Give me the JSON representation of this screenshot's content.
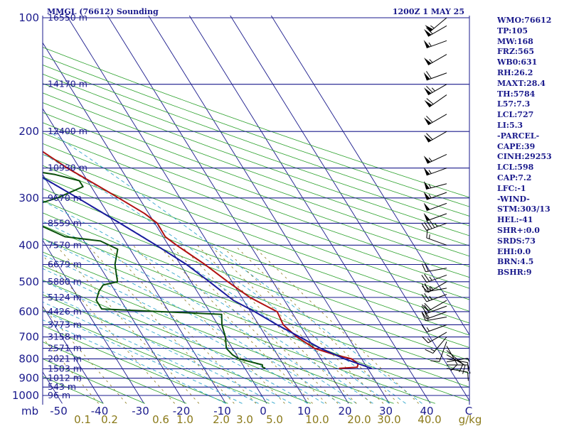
{
  "header": {
    "station": "MMGL (76612) Sounding",
    "time": "1200Z  1 MAY 25"
  },
  "indices": [
    "WMO:76612",
    "TP:105",
    "MW:168",
    "FRZ:565",
    "WB0:631",
    "RH:26.2",
    "MAXT:28.4",
    "TH:5784",
    "L57:7.3",
    "LCL:727",
    "LI:5.3",
    "-PARCEL-",
    "CAPE:39",
    "CINH:29253",
    "LCL:598",
    "CAP:7.2",
    "LFC:-1",
    "-WIND-",
    "STM:303/13",
    "HEL:-41",
    "SHR+:0.0",
    "SRDS:73",
    "EHI:0.0",
    "BRN:4.5",
    "BSHR:9"
  ],
  "colors": {
    "isobar": "#1a1a8c",
    "isotherm": "#1a1a8c",
    "dry_adiabat": "#2aa02a",
    "moist_adiabat": "#33a6cc",
    "mixing_ratio": "#8b7a1a",
    "temperature": "#b01010",
    "dewpoint": "#0a500a",
    "parcel": "#1a1a9c",
    "wind_barb": "#000000"
  },
  "chart_data": {
    "type": "skew-t log-p sounding diagram",
    "pressure_labels": [
      100,
      200,
      300,
      400,
      500,
      600,
      700,
      800,
      900,
      1000
    ],
    "pressure_unit_label": "mb",
    "height_labels": [
      {
        "p": 100,
        "h": "16550 m"
      },
      {
        "p": 150,
        "h": "14170 m"
      },
      {
        "p": 200,
        "h": "12400 m"
      },
      {
        "p": 250,
        "h": "10930 m"
      },
      {
        "p": 300,
        "h": "9670 m"
      },
      {
        "p": 350,
        "h": "8559 m"
      },
      {
        "p": 400,
        "h": "7570 m"
      },
      {
        "p": 450,
        "h": "6679 m"
      },
      {
        "p": 500,
        "h": "5880 m"
      },
      {
        "p": 550,
        "h": "5124 m"
      },
      {
        "p": 600,
        "h": "4426 m"
      },
      {
        "p": 650,
        "h": "3773 m"
      },
      {
        "p": 700,
        "h": "3158 m"
      },
      {
        "p": 750,
        "h": "2571 m"
      },
      {
        "p": 800,
        "h": "2021 m"
      },
      {
        "p": 850,
        "h": "1503 m"
      },
      {
        "p": 900,
        "h": "1012 m"
      },
      {
        "p": 950,
        "h": "543 m"
      },
      {
        "p": 1000,
        "h": "96 m"
      }
    ],
    "temperature_axis": {
      "labels": [
        -50,
        -40,
        -30,
        -20,
        -10,
        0,
        10,
        20,
        30,
        40
      ],
      "unit": "C"
    },
    "mixing_ratio_axis": {
      "labels": [
        "0.1",
        "0.2",
        "0.6",
        "1.0",
        "2.0",
        "3.0",
        "5.0",
        "10.0",
        "20.0",
        "30.0",
        "40.0"
      ],
      "unit": "g/kg"
    },
    "series": [
      {
        "type": "line",
        "values": [
          [
            848,
            23
          ],
          [
            842,
            27.6
          ],
          [
            825,
            28.4
          ],
          [
            800,
            27.5
          ],
          [
            780,
            24
          ],
          [
            750,
            20
          ],
          [
            700,
            17.5
          ],
          [
            650,
            16
          ],
          [
            600,
            16.5
          ],
          [
            550,
            12
          ],
          [
            500,
            9
          ],
          [
            450,
            6
          ],
          [
            400,
            2
          ],
          [
            380,
            0.5
          ],
          [
            350,
            0.6
          ],
          [
            330,
            -1
          ],
          [
            300,
            -5
          ],
          [
            280,
            -8
          ],
          [
            250,
            -13
          ],
          [
            220,
            -17.5
          ],
          [
            200,
            -20
          ],
          [
            180,
            -23.5
          ],
          [
            160,
            -26
          ],
          [
            140,
            -28.5
          ],
          [
            130,
            -28
          ],
          [
            120,
            -26
          ],
          [
            110,
            -28
          ],
          [
            100,
            -26
          ]
        ]
      },
      {
        "type": "line",
        "values": [
          [
            848,
            5
          ],
          [
            840,
            4.5
          ],
          [
            830,
            4.8
          ],
          [
            800,
            0
          ],
          [
            780,
            -1
          ],
          [
            750,
            -1.5
          ],
          [
            700,
            0
          ],
          [
            650,
            1
          ],
          [
            610,
            2.5
          ],
          [
            590,
            -26
          ],
          [
            560,
            -26
          ],
          [
            530,
            -24
          ],
          [
            510,
            -22
          ],
          [
            500,
            -18
          ],
          [
            450,
            -16
          ],
          [
            410,
            -13
          ],
          [
            390,
            -16
          ],
          [
            380,
            -24
          ],
          [
            340,
            -31
          ],
          [
            320,
            -30
          ],
          [
            300,
            -20
          ],
          [
            280,
            -12
          ],
          [
            270,
            -12
          ],
          [
            260,
            -17
          ],
          [
            250,
            -26
          ],
          [
            235,
            -27
          ],
          [
            220,
            -23
          ],
          [
            210,
            -27
          ],
          [
            200,
            -33
          ],
          [
            185,
            -45
          ],
          [
            170,
            -51
          ],
          [
            150,
            -56
          ],
          [
            130,
            -62
          ],
          [
            110,
            -61
          ],
          [
            100,
            -61
          ]
        ]
      },
      {
        "type": "line",
        "values": [
          [
            848,
            31
          ],
          [
            800,
            25.8
          ],
          [
            750,
            21.5
          ],
          [
            700,
            18.2
          ],
          [
            650,
            14.5
          ],
          [
            600,
            11
          ],
          [
            560,
            7.5
          ],
          [
            500,
            4.5
          ],
          [
            450,
            1.5
          ],
          [
            400,
            -3
          ],
          [
            350,
            -8.5
          ],
          [
            300,
            -15
          ],
          [
            250,
            -23
          ],
          [
            200,
            -32
          ],
          [
            150,
            -44
          ],
          [
            120,
            -54
          ]
        ]
      }
    ],
    "wind_barbs": [
      {
        "p": 848,
        "dir": 100,
        "spd": 10
      },
      {
        "p": 830,
        "dir": 90,
        "spd": 10
      },
      {
        "p": 815,
        "dir": 80,
        "spd": 5
      },
      {
        "p": 800,
        "dir": 100,
        "spd": 10
      },
      {
        "p": 780,
        "dir": 120,
        "spd": 10
      },
      {
        "p": 760,
        "dir": 130,
        "spd": 10
      },
      {
        "p": 740,
        "dir": 150,
        "spd": 10
      },
      {
        "p": 720,
        "dir": 200,
        "spd": 15
      },
      {
        "p": 700,
        "dir": 220,
        "spd": 15
      },
      {
        "p": 680,
        "dir": 240,
        "spd": 15
      },
      {
        "p": 650,
        "dir": 250,
        "spd": 15
      },
      {
        "p": 620,
        "dir": 260,
        "spd": 20
      },
      {
        "p": 600,
        "dir": 250,
        "spd": 20
      },
      {
        "p": 580,
        "dir": 250,
        "spd": 20
      },
      {
        "p": 560,
        "dir": 240,
        "spd": 20
      },
      {
        "p": 540,
        "dir": 250,
        "spd": 25
      },
      {
        "p": 520,
        "dir": 260,
        "spd": 25
      },
      {
        "p": 500,
        "dir": 240,
        "spd": 25
      },
      {
        "p": 480,
        "dir": 250,
        "spd": 25
      },
      {
        "p": 460,
        "dir": 260,
        "spd": 20
      },
      {
        "p": 400,
        "dir": 290,
        "spd": 15
      },
      {
        "p": 350,
        "dir": 250,
        "spd": 45
      },
      {
        "p": 330,
        "dir": 250,
        "spd": 50
      },
      {
        "p": 310,
        "dir": 250,
        "spd": 50
      },
      {
        "p": 290,
        "dir": 250,
        "spd": 55
      },
      {
        "p": 275,
        "dir": 255,
        "spd": 55
      },
      {
        "p": 250,
        "dir": 250,
        "spd": 55
      },
      {
        "p": 230,
        "dir": 245,
        "spd": 55
      },
      {
        "p": 200,
        "dir": 240,
        "spd": 60
      },
      {
        "p": 180,
        "dir": 240,
        "spd": 60
      },
      {
        "p": 160,
        "dir": 235,
        "spd": 60
      },
      {
        "p": 150,
        "dir": 240,
        "spd": 65
      },
      {
        "p": 140,
        "dir": 250,
        "spd": 60
      },
      {
        "p": 125,
        "dir": 240,
        "spd": 55
      },
      {
        "p": 115,
        "dir": 250,
        "spd": 55
      },
      {
        "p": 105,
        "dir": 240,
        "spd": 60
      },
      {
        "p": 100,
        "dir": 230,
        "spd": 55
      }
    ]
  }
}
